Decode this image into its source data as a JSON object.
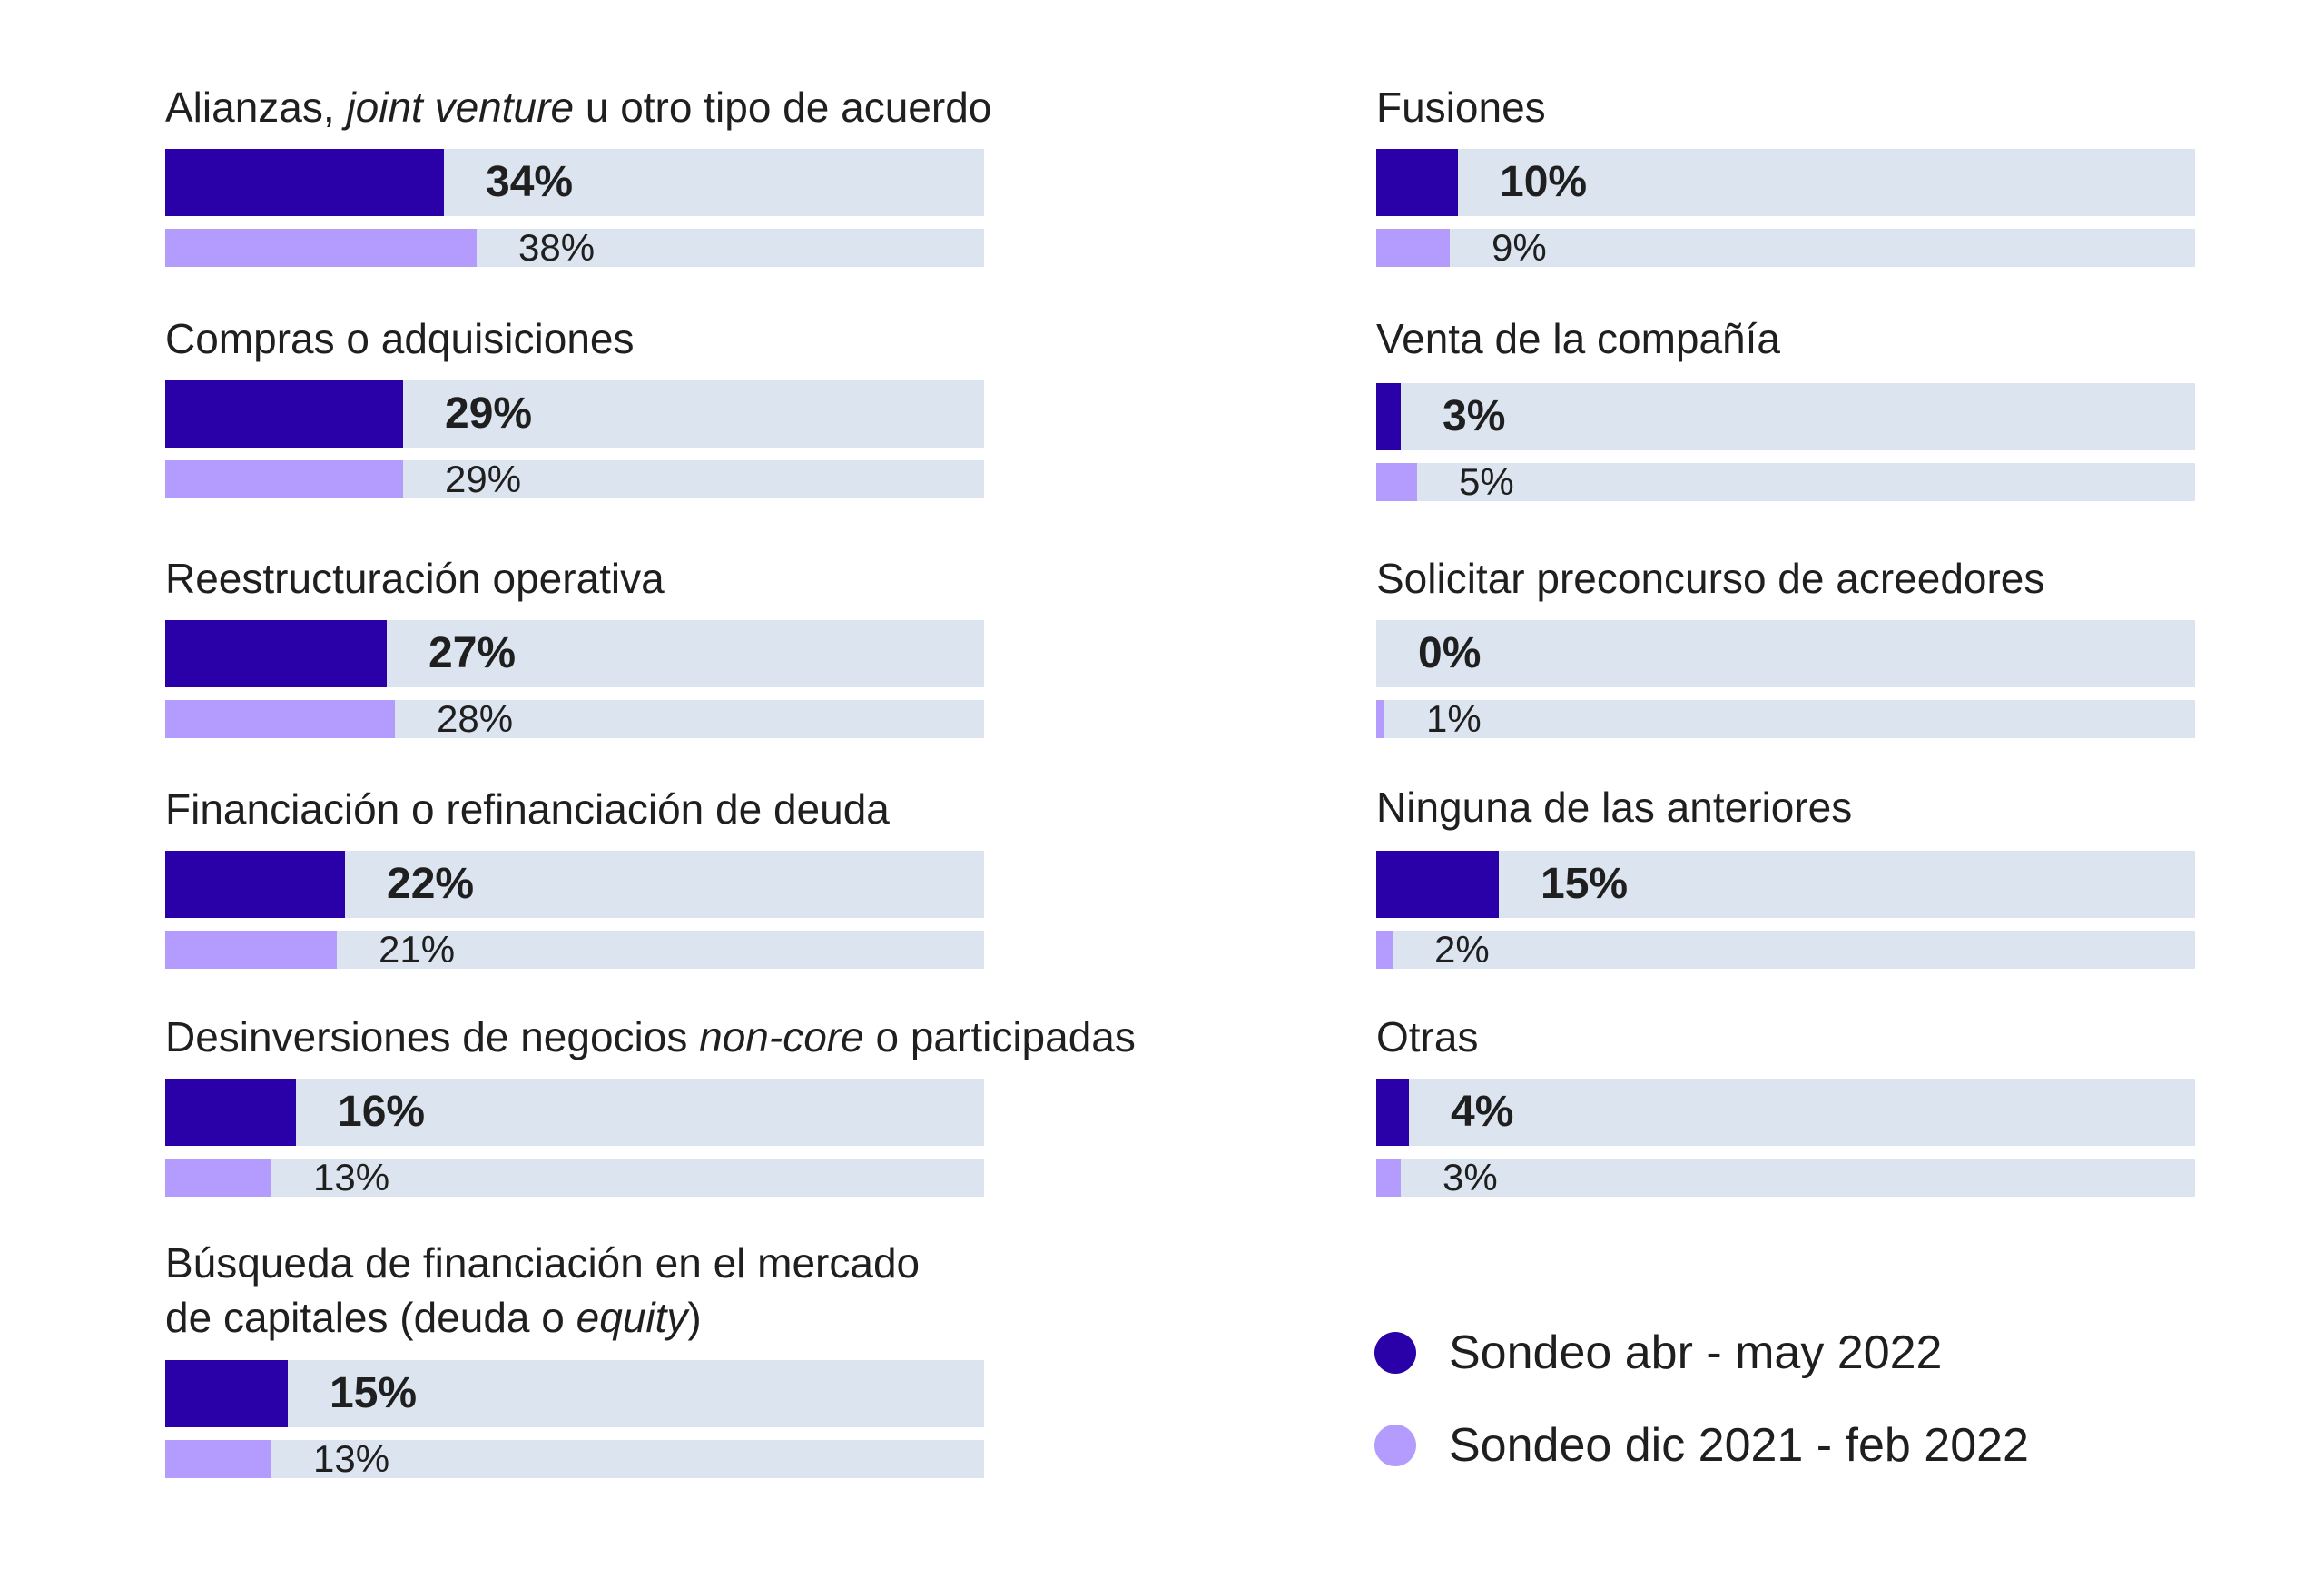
{
  "chart_data": {
    "type": "bar",
    "orientation": "horizontal",
    "value_suffix": "%",
    "xlim": [
      0,
      100
    ],
    "legend_position": "bottom-right",
    "series": [
      {
        "name": "Sondeo abr - may 2022",
        "color": "#2a00a8"
      },
      {
        "name": "Sondeo dic 2021 - feb 2022",
        "color": "#b49cff"
      }
    ],
    "categories": [
      {
        "label": [
          {
            "t": "Alianzas, "
          },
          {
            "t": "joint venture",
            "i": true
          },
          {
            "t": " u otro tipo de acuerdo"
          }
        ],
        "values": [
          34,
          38
        ]
      },
      {
        "label": [
          {
            "t": "Compras o adquisiciones"
          }
        ],
        "values": [
          29,
          29
        ]
      },
      {
        "label": [
          {
            "t": "Reestructuración operativa"
          }
        ],
        "values": [
          27,
          28
        ]
      },
      {
        "label": [
          {
            "t": "Financiación o refinanciación de deuda"
          }
        ],
        "values": [
          22,
          21
        ]
      },
      {
        "label": [
          {
            "t": "Desinversiones de negocios "
          },
          {
            "t": "non-core",
            "i": true
          },
          {
            "t": " o participadas"
          }
        ],
        "values": [
          16,
          13
        ]
      },
      {
        "label": [
          {
            "t": "Búsqueda de financiación en el mercado"
          },
          {
            "br": true
          },
          {
            "t": "de capitales (deuda o "
          },
          {
            "t": "equity",
            "i": true
          },
          {
            "t": ")"
          }
        ],
        "values": [
          15,
          13
        ]
      },
      {
        "label": [
          {
            "t": "Fusiones"
          }
        ],
        "values": [
          10,
          9
        ]
      },
      {
        "label": [
          {
            "t": "Venta de la compañía"
          }
        ],
        "values": [
          3,
          5
        ]
      },
      {
        "label": [
          {
            "t": "Solicitar preconcurso de acreedores"
          }
        ],
        "values": [
          0,
          1
        ]
      },
      {
        "label": [
          {
            "t": "Ninguna de las anteriores"
          }
        ],
        "values": [
          15,
          2
        ]
      },
      {
        "label": [
          {
            "t": "Otras"
          }
        ],
        "values": [
          4,
          3
        ]
      }
    ]
  }
}
